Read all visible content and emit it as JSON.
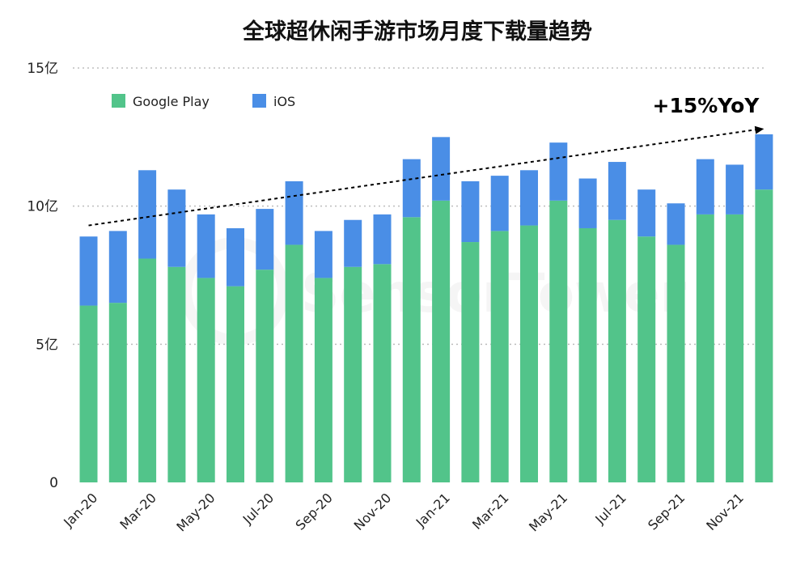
{
  "chart_data": {
    "type": "bar",
    "stacked": true,
    "title": "全球超休闲手游市场月度下载量趋势",
    "categories": [
      "Jan-20",
      "Feb-20",
      "Mar-20",
      "Apr-20",
      "May-20",
      "Jun-20",
      "Jul-20",
      "Aug-20",
      "Sep-20",
      "Oct-20",
      "Nov-20",
      "Dec-20",
      "Jan-21",
      "Feb-21",
      "Mar-21",
      "Apr-21",
      "May-21",
      "Jun-21",
      "Jul-21",
      "Aug-21",
      "Sep-21",
      "Oct-21",
      "Nov-21",
      "Dec-21"
    ],
    "x_tick_labels": [
      "Jan-20",
      "Mar-20",
      "May-20",
      "Jul-20",
      "Sep-20",
      "Nov-20",
      "Jan-21",
      "Mar-21",
      "May-21",
      "Jul-21",
      "Sep-21",
      "Nov-21"
    ],
    "y_ticks": [
      {
        "value": 0,
        "label": "0"
      },
      {
        "value": 5,
        "label": "5亿"
      },
      {
        "value": 10,
        "label": "10亿"
      },
      {
        "value": 15,
        "label": "15亿"
      }
    ],
    "ylim": [
      0,
      15
    ],
    "y_unit": "亿",
    "grid": true,
    "legend_position": "top-left",
    "series": [
      {
        "name": "Google Play",
        "color": "#52c48a",
        "values": [
          6.4,
          6.5,
          8.1,
          7.8,
          7.4,
          7.1,
          7.7,
          8.6,
          7.4,
          7.8,
          7.9,
          9.6,
          10.2,
          8.7,
          9.1,
          9.3,
          10.2,
          9.2,
          9.5,
          8.9,
          8.6,
          9.7,
          9.7,
          10.6
        ]
      },
      {
        "name": "iOS",
        "color": "#4a8ee6",
        "values": [
          2.5,
          2.6,
          3.2,
          2.8,
          2.3,
          2.1,
          2.2,
          2.3,
          1.7,
          1.7,
          1.8,
          2.1,
          2.3,
          2.2,
          2.0,
          2.0,
          2.1,
          1.8,
          2.1,
          1.7,
          1.5,
          2.0,
          1.8,
          2.0
        ]
      }
    ],
    "annotation": {
      "text": "+15%YoY",
      "from": {
        "category": "Jan-20",
        "value": 9.3
      },
      "to": {
        "category": "Dec-21",
        "value": 12.8
      }
    },
    "watermark": "SensorTower"
  }
}
